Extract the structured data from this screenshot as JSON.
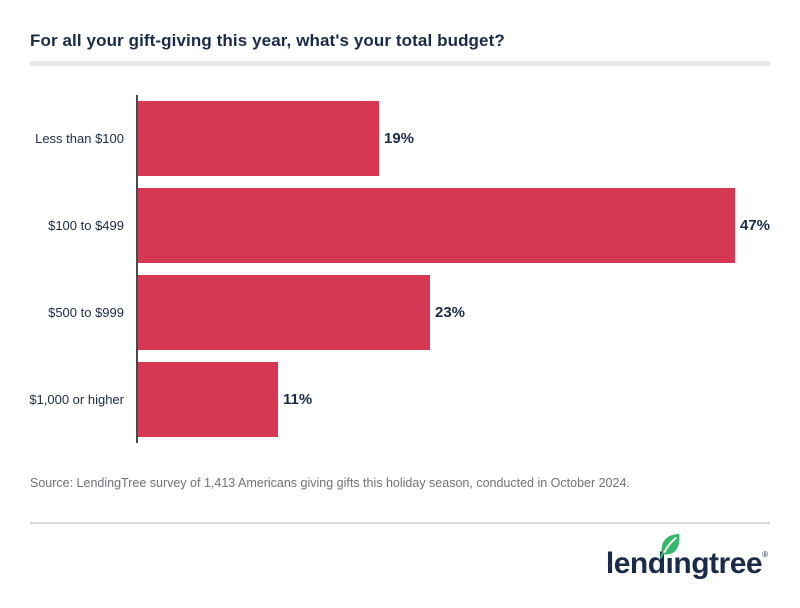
{
  "title": "For all your gift-giving this year, what's your total budget?",
  "chart_data": {
    "type": "bar",
    "orientation": "horizontal",
    "title": "For all your gift-giving this year, what's your total budget?",
    "categories": [
      "Less than $100",
      "$100 to $499",
      "$500 to $999",
      "$1,000 or higher"
    ],
    "values": [
      19,
      47,
      23,
      11
    ],
    "value_labels": [
      "19%",
      "47%",
      "23%",
      "11%"
    ],
    "xlabel": "",
    "ylabel": "",
    "xlim": [
      0,
      47
    ],
    "grid": false,
    "legend": "none",
    "bar_color": "#D63752",
    "axis_color": "#4A4A4A",
    "label_color": "#1A2B49"
  },
  "source": "Source: LendingTree survey of 1,413 Americans giving gifts this holiday season, conducted in October 2024.",
  "logo": {
    "text": "lendingtree",
    "registered": "®",
    "leaf_color": "#35B86B",
    "text_color": "#1A2B49"
  },
  "colors": {
    "background": "#FFFFFF",
    "title_divider": "#E7E7E7",
    "footer_divider": "#D9D9D9",
    "source_text": "#6E7178"
  }
}
